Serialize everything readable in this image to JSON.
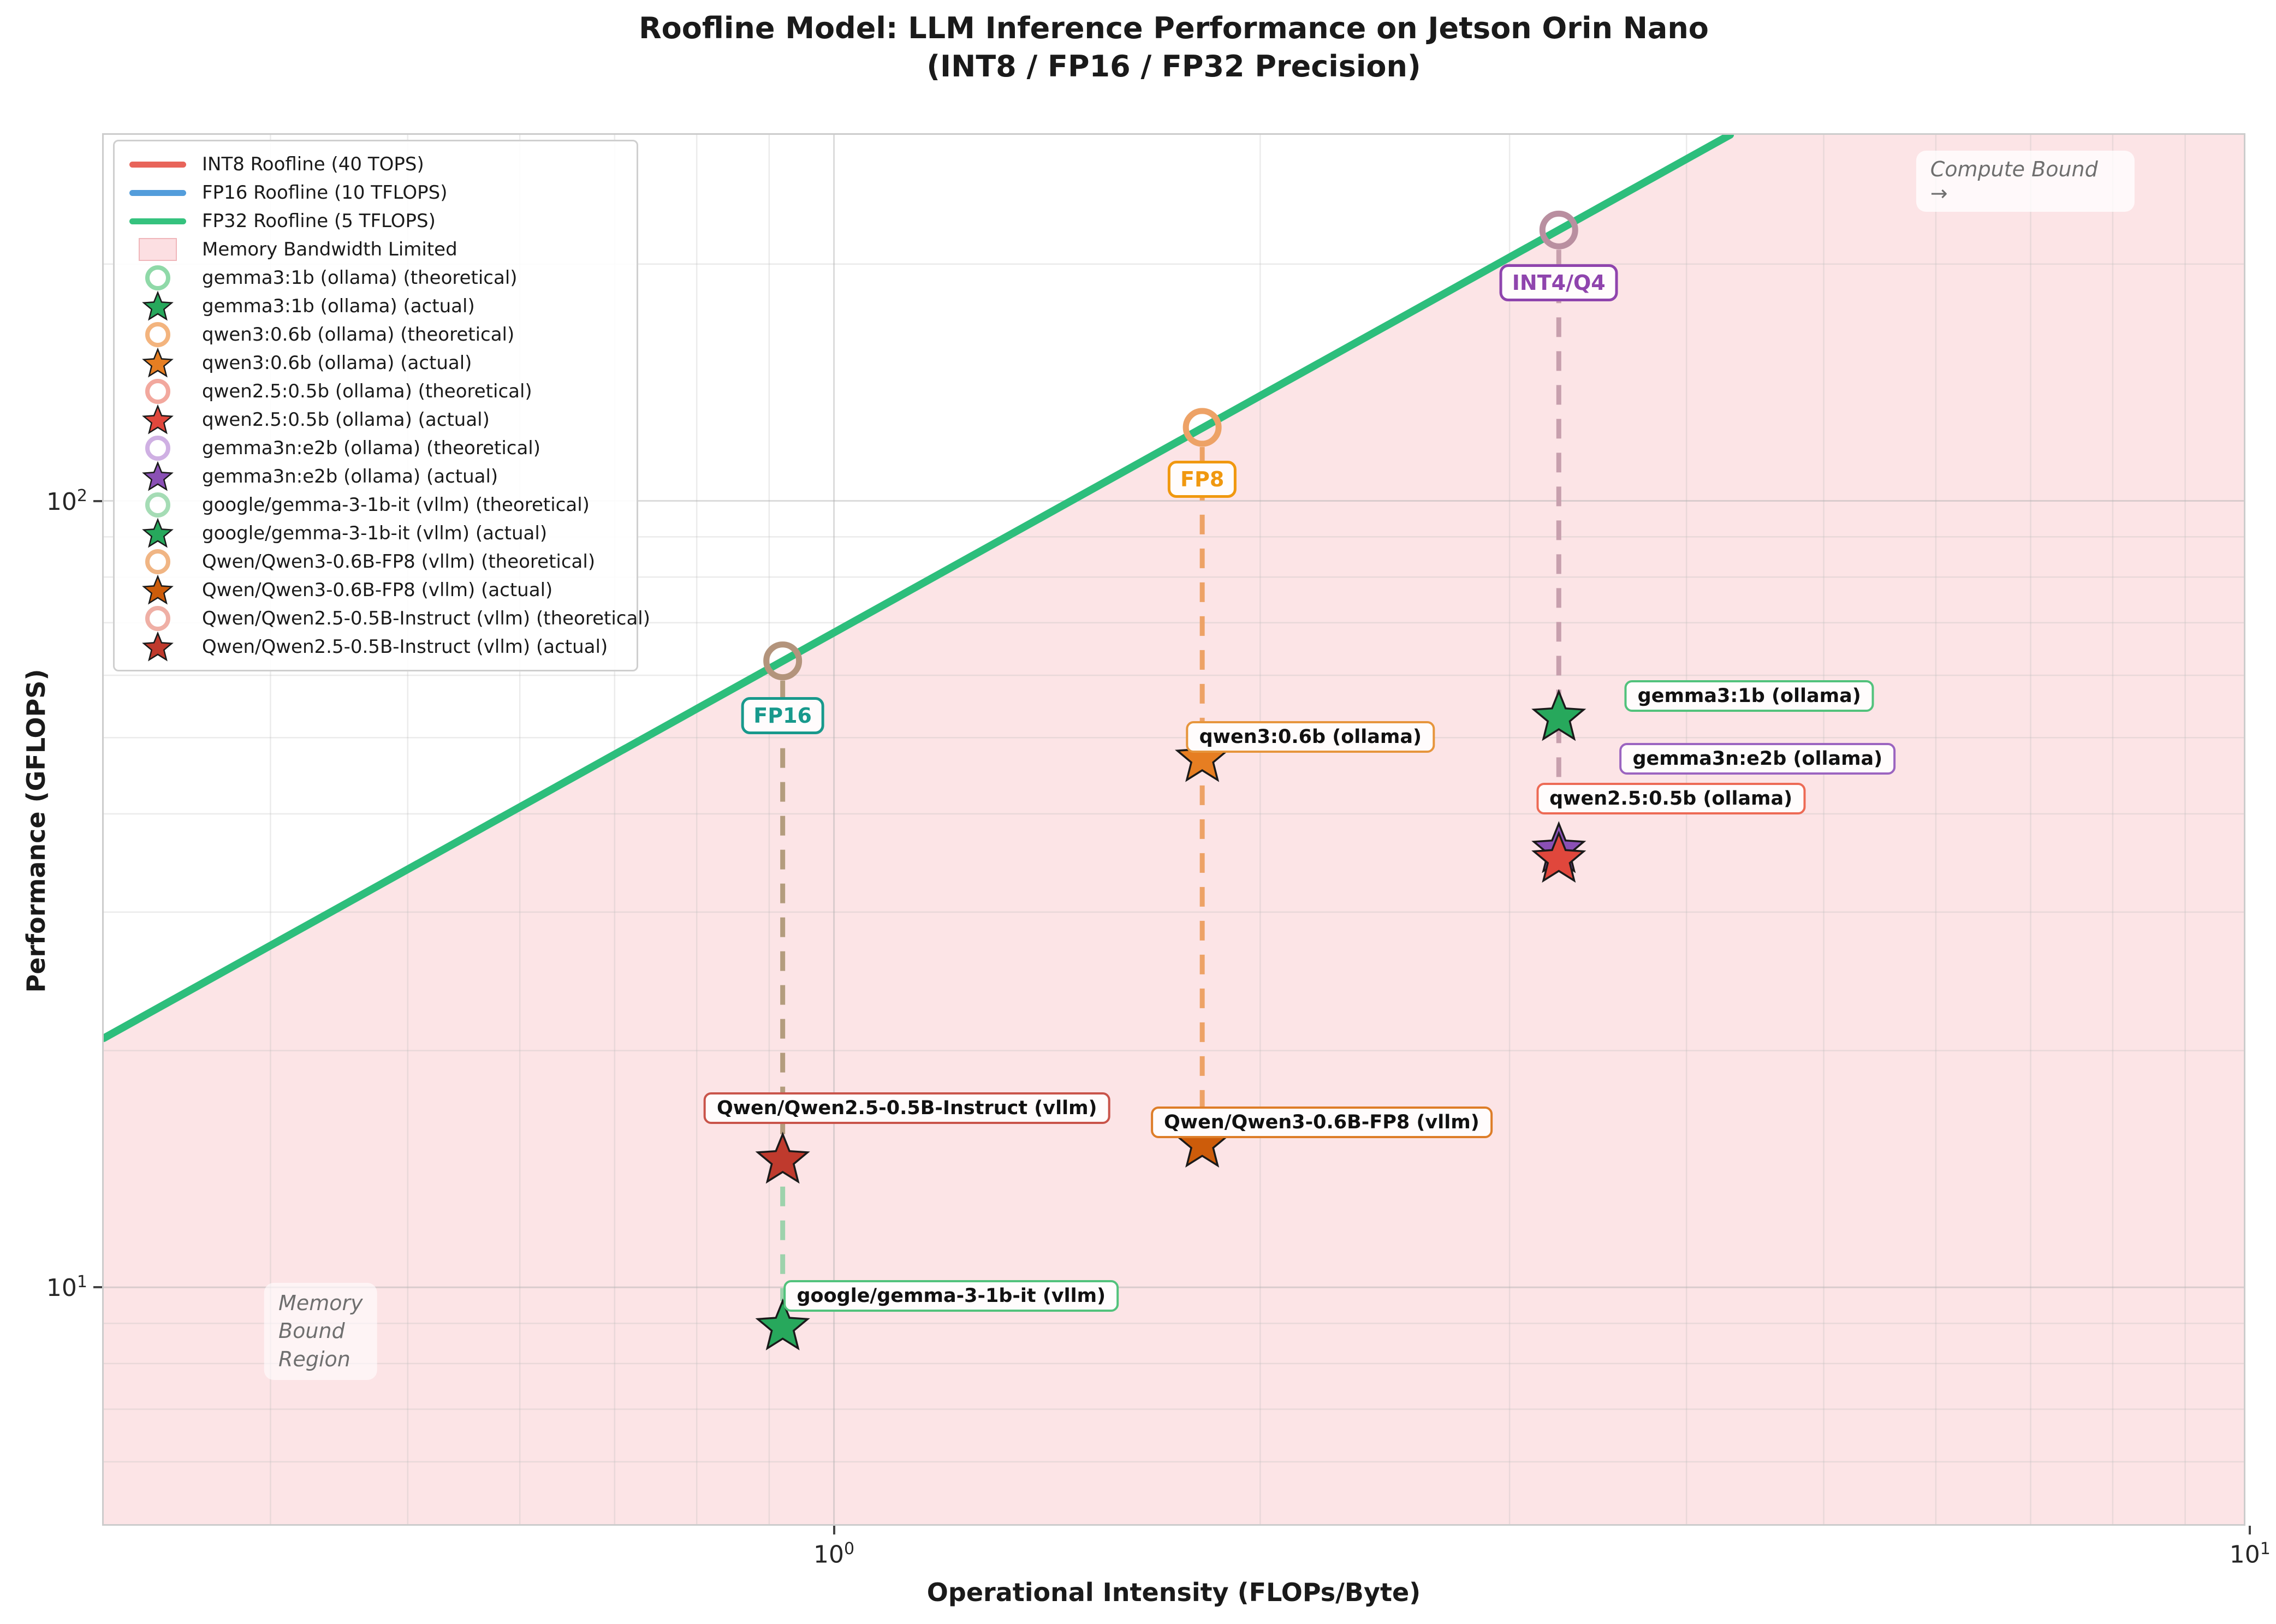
{
  "title": {
    "line1": "Roofline Model: LLM Inference Performance on Jetson Orin Nano",
    "line2": "(INT8 / FP16 / FP32 Precision)"
  },
  "axes": {
    "xlabel": "Operational Intensity (FLOPs/Byte)",
    "ylabel": "Performance (GFLOPS)"
  },
  "chart_data": {
    "type": "scatter",
    "x_scale": "log",
    "y_scale": "log",
    "xlim": [
      0.305,
      9.9
    ],
    "ylim": [
      5,
      292
    ],
    "grid": true,
    "memory_bandwidth_gb_s": 68,
    "region": {
      "label": "Memory Bandwidth Limited",
      "fill": "#fce4e6"
    },
    "rooflines": [
      {
        "name": "INT8 Roofline (40 TOPS)",
        "peak_tops": 40,
        "color": "#e8645a"
      },
      {
        "name": "FP16 Roofline (10 TFLOPS)",
        "peak_tflops": 10,
        "color": "#539ddb"
      },
      {
        "name": "FP32 Roofline (5 TFLOPS)",
        "peak_tflops": 5,
        "color": "#35c27e"
      }
    ],
    "diagonal_color": "#2dbe7c",
    "x_ticks": [
      {
        "value": 1,
        "base": "10",
        "exp": "0"
      },
      {
        "value": 10,
        "base": "10",
        "exp": "1"
      }
    ],
    "y_ticks": [
      {
        "value": 10,
        "base": "10",
        "exp": "1"
      },
      {
        "value": 100,
        "base": "10",
        "exp": "2"
      }
    ],
    "x_minor": [
      0.4,
      0.5,
      0.6,
      0.7,
      0.8,
      0.9,
      2,
      3,
      4,
      5,
      6,
      7,
      8,
      9
    ],
    "y_minor": [
      6,
      7,
      8,
      9,
      20,
      30,
      40,
      50,
      60,
      70,
      80,
      90,
      200
    ],
    "columns": [
      {
        "label": "FP16",
        "oi": 0.92,
        "theoretical_gflops": 62.6,
        "circle_color": "#b3947c",
        "label_color": "#18998c",
        "label_at_gflops": 53.3,
        "dash_segments": [
          {
            "from": 62.6,
            "to": 14.5,
            "color": "#b39c7e"
          },
          {
            "from": 14.5,
            "to": 8.9,
            "color": "#9dd2ac"
          }
        ]
      },
      {
        "label": "FP8",
        "oi": 1.82,
        "theoretical_gflops": 124,
        "circle_color": "#eda266",
        "label_color": "#f0980f",
        "label_at_gflops": 106.6,
        "dash_segments": [
          {
            "from": 124,
            "to": 15.2,
            "color": "#eda266"
          }
        ]
      },
      {
        "label": "INT4/Q4",
        "oi": 3.25,
        "theoretical_gflops": 221,
        "circle_color": "#b98fa0",
        "label_color": "#8f44ad",
        "label_at_gflops": 189.5,
        "dash_segments": [
          {
            "from": 221,
            "to": 36,
            "color": "#c79fad"
          }
        ]
      }
    ],
    "points": [
      {
        "model": "gemma3:1b",
        "runtime": "ollama",
        "column": "INT4/Q4",
        "oi": 3.25,
        "actual_gflops": 53,
        "theoretical_gflops": 221,
        "color": "#27a85c"
      },
      {
        "model": "gemma3n:e2b",
        "runtime": "ollama",
        "column": "INT4/Q4",
        "oi": 3.25,
        "actual_gflops": 36,
        "theoretical_gflops": 221,
        "color": "#8a50b5"
      },
      {
        "model": "qwen2.5:0.5b",
        "runtime": "ollama",
        "column": "INT4/Q4",
        "oi": 3.25,
        "actual_gflops": 35,
        "theoretical_gflops": 221,
        "color": "#e0473c"
      },
      {
        "model": "qwen3:0.6b",
        "runtime": "ollama",
        "column": "FP8",
        "oi": 1.82,
        "actual_gflops": 47,
        "theoretical_gflops": 124,
        "color": "#e67e22"
      },
      {
        "model": "Qwen/Qwen3-0.6B-FP8",
        "runtime": "vllm",
        "column": "FP8",
        "oi": 1.82,
        "actual_gflops": 15.2,
        "theoretical_gflops": 124,
        "color": "#cd5c0a"
      },
      {
        "model": "Qwen/Qwen2.5-0.5B-Instruct",
        "runtime": "vllm",
        "column": "FP16",
        "oi": 0.92,
        "actual_gflops": 14.5,
        "theoretical_gflops": 62.6,
        "color": "#bf3a2d"
      },
      {
        "model": "google/gemma-3-1b-it",
        "runtime": "vllm",
        "column": "FP16",
        "oi": 0.92,
        "actual_gflops": 8.9,
        "theoretical_gflops": 62.6,
        "color": "#27a85c"
      }
    ],
    "annotations": [
      {
        "text": "gemma3:1b (ollama)",
        "border": "#52c27c",
        "oi": 4.43,
        "gflops": 56.5
      },
      {
        "text": "gemma3n:e2b (ollama)",
        "border": "#9b64c0",
        "oi": 4.49,
        "gflops": 47.0
      },
      {
        "text": "qwen2.5:0.5b (ollama)",
        "border": "#ed6a55",
        "oi": 3.9,
        "gflops": 41.8
      },
      {
        "text": "qwen3:0.6b (ollama)",
        "border": "#e6953c",
        "oi": 2.17,
        "gflops": 50.1
      },
      {
        "text": "Qwen/Qwen3-0.6B-FP8 (vllm)",
        "border": "#dd7d28",
        "oi": 2.21,
        "gflops": 16.2
      },
      {
        "text": "Qwen/Qwen2.5-0.5B-Instruct (vllm)",
        "border": "#c9544a",
        "oi": 1.126,
        "gflops": 16.9
      },
      {
        "text": "google/gemma-3-1b-it (vllm)",
        "border": "#52c27c",
        "oi": 1.21,
        "gflops": 9.75
      }
    ],
    "notes": [
      {
        "id": "compute-note",
        "text": "Compute Bound →",
        "oi": 6.94,
        "gflops": 255
      },
      {
        "id": "memory-note",
        "text": "Memory\nBound\nRegion",
        "oi": 0.434,
        "gflops": 8.79
      }
    ],
    "legend": [
      {
        "type": "line",
        "color": "#e8645a",
        "label": "INT8 Roofline (40 TOPS)"
      },
      {
        "type": "line",
        "color": "#539ddb",
        "label": "FP16 Roofline (10 TFLOPS)"
      },
      {
        "type": "line",
        "color": "#35c27e",
        "label": "FP32 Roofline (5 TFLOPS)"
      },
      {
        "type": "patch",
        "color": "#fcdfe2",
        "label": "Memory Bandwidth Limited"
      },
      {
        "type": "circle",
        "color": "#8fd9a8",
        "label": "gemma3:1b (ollama) (theoretical)"
      },
      {
        "type": "star",
        "color": "#27a85c",
        "label": "gemma3:1b (ollama) (actual)"
      },
      {
        "type": "circle",
        "color": "#f3b47e",
        "label": "qwen3:0.6b (ollama) (theoretical)"
      },
      {
        "type": "star",
        "color": "#e67e22",
        "label": "qwen3:0.6b (ollama) (actual)"
      },
      {
        "type": "circle",
        "color": "#f2a89e",
        "label": "qwen2.5:0.5b (ollama) (theoretical)"
      },
      {
        "type": "star",
        "color": "#e0473c",
        "label": "qwen2.5:0.5b (ollama) (actual)"
      },
      {
        "type": "circle",
        "color": "#cfb0e3",
        "label": "gemma3n:e2b (ollama) (theoretical)"
      },
      {
        "type": "star",
        "color": "#8a50b5",
        "label": "gemma3n:e2b (ollama) (actual)"
      },
      {
        "type": "circle",
        "color": "#a5dcb5",
        "label": "google/gemma-3-1b-it (vllm) (theoretical)"
      },
      {
        "type": "star",
        "color": "#27a85c",
        "label": "google/gemma-3-1b-it (vllm) (actual)"
      },
      {
        "type": "circle",
        "color": "#f0b584",
        "label": "Qwen/Qwen3-0.6B-FP8 (vllm) (theoretical)"
      },
      {
        "type": "star",
        "color": "#cd5c0a",
        "label": "Qwen/Qwen3-0.6B-FP8 (vllm) (actual)"
      },
      {
        "type": "circle",
        "color": "#efafa5",
        "label": "Qwen/Qwen2.5-0.5B-Instruct (vllm) (theoretical)"
      },
      {
        "type": "star",
        "color": "#bf3a2d",
        "label": "Qwen/Qwen2.5-0.5B-Instruct (vllm) (actual)"
      }
    ]
  }
}
